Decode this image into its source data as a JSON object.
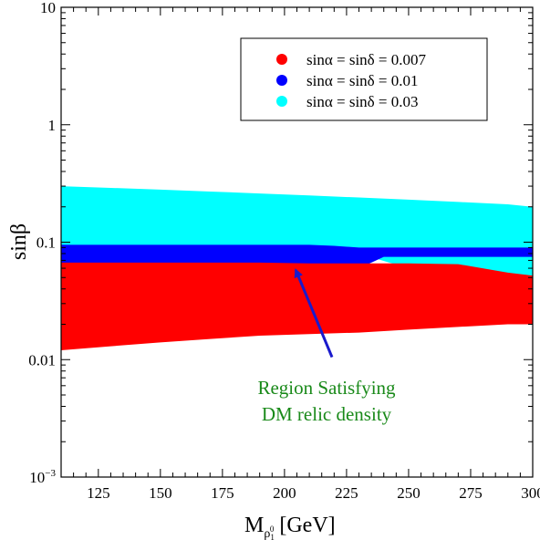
{
  "chart_data": {
    "type": "scatter",
    "xlabel": "M",
    "xlabel_sub": "ρ",
    "xlabel_subsub": "1",
    "xlabel_supsub": "0",
    "xlabel_unit": "[GeV]",
    "ylabel": "sinβ",
    "xlim": [
      110,
      300
    ],
    "ylim": [
      0.001,
      10
    ],
    "yscale": "log",
    "grid": false,
    "legend_position": "top-right",
    "x_ticks": [
      {
        "value": 125,
        "label": "125"
      },
      {
        "value": 150,
        "label": "150"
      },
      {
        "value": 175,
        "label": "175"
      },
      {
        "value": 200,
        "label": "200"
      },
      {
        "value": 225,
        "label": "225"
      },
      {
        "value": 250,
        "label": "250"
      },
      {
        "value": 275,
        "label": "275"
      },
      {
        "value": 300,
        "label": "300"
      }
    ],
    "y_ticks": [
      {
        "value": 10,
        "label": "10"
      },
      {
        "value": 1,
        "label": "1"
      },
      {
        "value": 0.1,
        "label": "0.1"
      },
      {
        "value": 0.01,
        "label": "0.01"
      },
      {
        "value": 0.001,
        "label": "10",
        "sup": "−3"
      }
    ],
    "series": [
      {
        "name": "sinα = sinδ = 0.03",
        "color": "#00ffff",
        "x": [
          110,
          130,
          150,
          170,
          190,
          210,
          230,
          250,
          270,
          290,
          300
        ],
        "y_upper": [
          0.3,
          0.29,
          0.28,
          0.27,
          0.26,
          0.25,
          0.24,
          0.23,
          0.22,
          0.21,
          0.2
        ],
        "y_lower": [
          0.085,
          0.085,
          0.085,
          0.085,
          0.085,
          0.085,
          0.08,
          0.06,
          0.055,
          0.05,
          0.048
        ]
      },
      {
        "name": "sinα = sinδ = 0.01",
        "color": "#0000ff",
        "x": [
          110,
          130,
          150,
          170,
          190,
          210,
          220,
          230,
          240,
          260,
          280,
          300
        ],
        "y_upper": [
          0.095,
          0.095,
          0.095,
          0.095,
          0.095,
          0.095,
          0.093,
          0.09,
          0.09,
          0.09,
          0.09,
          0.09
        ],
        "y_lower": [
          0.066,
          0.066,
          0.066,
          0.066,
          0.066,
          0.065,
          0.063,
          0.06,
          0.075,
          0.075,
          0.075,
          0.075
        ]
      },
      {
        "name": "sinα = sinδ = 0.007",
        "color": "#ff0000",
        "x": [
          110,
          130,
          150,
          170,
          190,
          210,
          230,
          250,
          270,
          290,
          300
        ],
        "y_upper": [
          0.067,
          0.067,
          0.067,
          0.067,
          0.067,
          0.066,
          0.066,
          0.066,
          0.065,
          0.055,
          0.052
        ],
        "y_lower": [
          0.012,
          0.013,
          0.014,
          0.015,
          0.016,
          0.0165,
          0.017,
          0.018,
          0.019,
          0.02,
          0.02
        ]
      }
    ],
    "annotation": {
      "lines": [
        "Region Satisfying",
        "DM relic density"
      ],
      "arrow_to": {
        "x": 206,
        "y": 0.058
      },
      "arrow_from": {
        "x": 214,
        "y": 0.0105
      }
    }
  }
}
